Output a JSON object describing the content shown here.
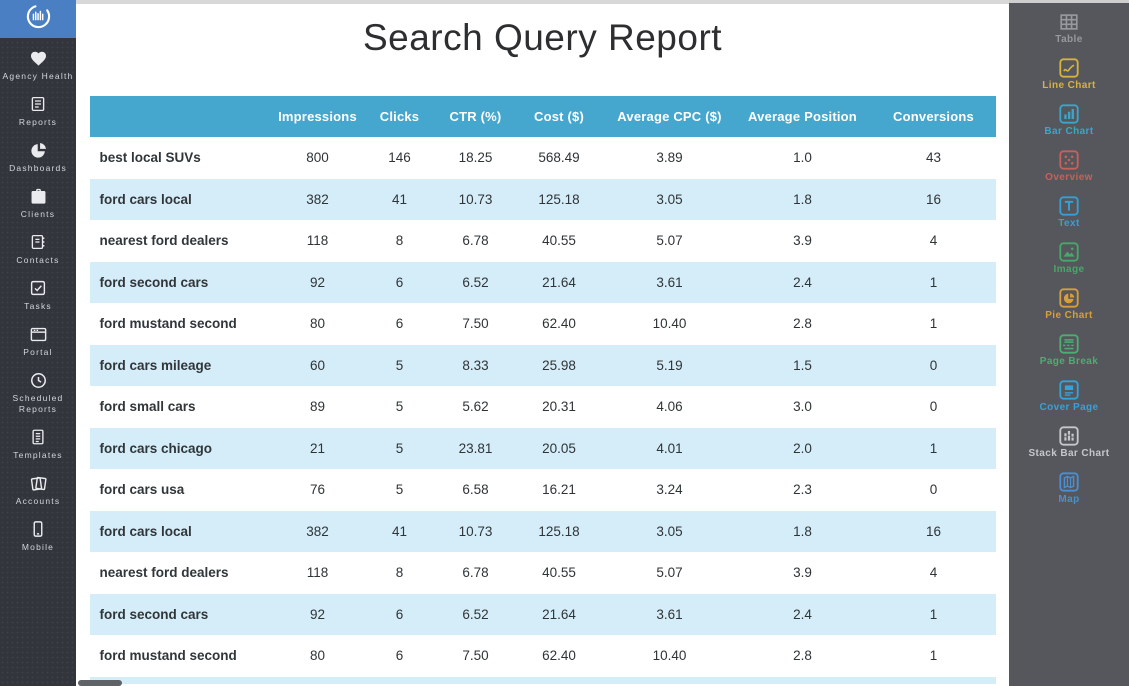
{
  "report": {
    "title": "Search Query Report",
    "table": {
      "columns": [
        "",
        "Impressions",
        "Clicks",
        "CTR (%)",
        "Cost ($)",
        "Average CPC ($)",
        "Average Position",
        "Conversions"
      ],
      "rows": [
        {
          "query": "best local SUVs",
          "impressions": "800",
          "clicks": "146",
          "ctr": "18.25",
          "cost": "568.49",
          "avg_cpc": "3.89",
          "avg_position": "1.0",
          "conversions": "43"
        },
        {
          "query": "ford cars local",
          "impressions": "382",
          "clicks": "41",
          "ctr": "10.73",
          "cost": "125.18",
          "avg_cpc": "3.05",
          "avg_position": "1.8",
          "conversions": "16"
        },
        {
          "query": "nearest ford dealers",
          "impressions": "118",
          "clicks": "8",
          "ctr": "6.78",
          "cost": "40.55",
          "avg_cpc": "5.07",
          "avg_position": "3.9",
          "conversions": "4"
        },
        {
          "query": "ford second cars",
          "impressions": "92",
          "clicks": "6",
          "ctr": "6.52",
          "cost": "21.64",
          "avg_cpc": "3.61",
          "avg_position": "2.4",
          "conversions": "1"
        },
        {
          "query": "ford mustand second",
          "impressions": "80",
          "clicks": "6",
          "ctr": "7.50",
          "cost": "62.40",
          "avg_cpc": "10.40",
          "avg_position": "2.8",
          "conversions": "1"
        },
        {
          "query": "ford cars mileage",
          "impressions": "60",
          "clicks": "5",
          "ctr": "8.33",
          "cost": "25.98",
          "avg_cpc": "5.19",
          "avg_position": "1.5",
          "conversions": "0"
        },
        {
          "query": "ford small cars",
          "impressions": "89",
          "clicks": "5",
          "ctr": "5.62",
          "cost": "20.31",
          "avg_cpc": "4.06",
          "avg_position": "3.0",
          "conversions": "0"
        },
        {
          "query": "ford cars chicago",
          "impressions": "21",
          "clicks": "5",
          "ctr": "23.81",
          "cost": "20.05",
          "avg_cpc": "4.01",
          "avg_position": "2.0",
          "conversions": "1"
        },
        {
          "query": "ford cars usa",
          "impressions": "76",
          "clicks": "5",
          "ctr": "6.58",
          "cost": "16.21",
          "avg_cpc": "3.24",
          "avg_position": "2.3",
          "conversions": "0"
        },
        {
          "query": "ford cars local",
          "impressions": "382",
          "clicks": "41",
          "ctr": "10.73",
          "cost": "125.18",
          "avg_cpc": "3.05",
          "avg_position": "1.8",
          "conversions": "16"
        },
        {
          "query": "nearest ford dealers",
          "impressions": "118",
          "clicks": "8",
          "ctr": "6.78",
          "cost": "40.55",
          "avg_cpc": "5.07",
          "avg_position": "3.9",
          "conversions": "4"
        },
        {
          "query": "ford second cars",
          "impressions": "92",
          "clicks": "6",
          "ctr": "6.52",
          "cost": "21.64",
          "avg_cpc": "3.61",
          "avg_position": "2.4",
          "conversions": "1"
        },
        {
          "query": "ford mustand second",
          "impressions": "80",
          "clicks": "6",
          "ctr": "7.50",
          "cost": "62.40",
          "avg_cpc": "10.40",
          "avg_position": "2.8",
          "conversions": "1"
        }
      ]
    }
  },
  "left_sidebar": {
    "items": [
      {
        "icon": "agency-health-icon",
        "label": "Agency Health"
      },
      {
        "icon": "reports-icon",
        "label": "Reports"
      },
      {
        "icon": "dashboards-icon",
        "label": "Dashboards"
      },
      {
        "icon": "clients-icon",
        "label": "Clients"
      },
      {
        "icon": "contacts-icon",
        "label": "Contacts"
      },
      {
        "icon": "tasks-icon",
        "label": "Tasks"
      },
      {
        "icon": "portal-icon",
        "label": "Portal"
      },
      {
        "icon": "scheduled-reports-icon",
        "label": "Scheduled Reports"
      },
      {
        "icon": "templates-icon",
        "label": "Templates"
      },
      {
        "icon": "accounts-icon",
        "label": "Accounts"
      },
      {
        "icon": "mobile-icon",
        "label": "Mobile"
      }
    ]
  },
  "right_sidebar": {
    "items": [
      {
        "icon": "table-icon",
        "label": "Table",
        "color": "#97999e"
      },
      {
        "icon": "line-chart-icon",
        "label": "Line Chart",
        "color": "#d8b33c"
      },
      {
        "icon": "bar-chart-icon",
        "label": "Bar Chart",
        "color": "#38a7c9"
      },
      {
        "icon": "overview-icon",
        "label": "Overview",
        "color": "#c9605a"
      },
      {
        "icon": "text-icon",
        "label": "Text",
        "color": "#35a0d6"
      },
      {
        "icon": "image-icon",
        "label": "Image",
        "color": "#45a96a"
      },
      {
        "icon": "pie-chart-icon",
        "label": "Pie Chart",
        "color": "#d89e3c"
      },
      {
        "icon": "page-break-icon",
        "label": "Page Break",
        "color": "#4cae72"
      },
      {
        "icon": "cover-page-icon",
        "label": "Cover Page",
        "color": "#35a3d8"
      },
      {
        "icon": "stack-bar-chart-icon",
        "label": "Stack Bar Chart",
        "color": "#c5c7cb"
      },
      {
        "icon": "map-icon",
        "label": "Map",
        "color": "#4a8fd4"
      }
    ]
  },
  "colors": {
    "table_header_bg": "#45a6ce",
    "row_alternate_bg": "#d5edf8",
    "logo_bg": "#4a80c3",
    "left_sidebar_bg": "#32353c",
    "right_sidebar_bg": "#55575c"
  }
}
